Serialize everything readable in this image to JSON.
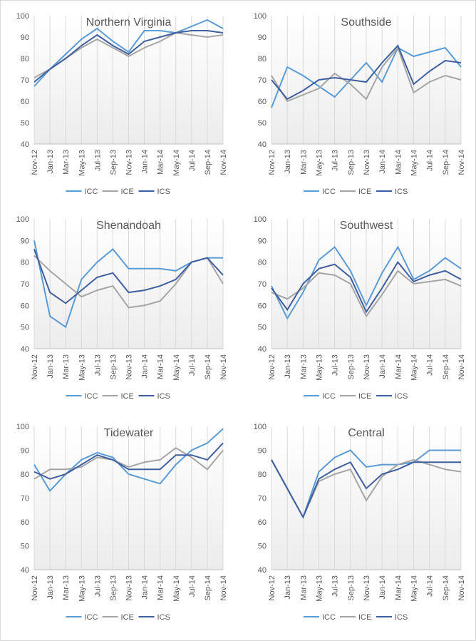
{
  "chart_data": [
    {
      "type": "line",
      "title": "Northern Virginia",
      "categories": [
        "Nov-12",
        "Jan-13",
        "Mar-13",
        "May-13",
        "Jul-13",
        "Sep-13",
        "Nov-13",
        "Jan-14",
        "Mar-14",
        "May-14",
        "Jul-14",
        "Sep-14",
        "Nov-14"
      ],
      "ylim": [
        40,
        100
      ],
      "yticks": [
        40,
        50,
        60,
        70,
        80,
        90,
        100
      ],
      "legend": "bottom",
      "series": [
        {
          "name": "ICC",
          "color": "#5b9bd5",
          "values": [
            67,
            75,
            82,
            89,
            94,
            88,
            83,
            93,
            93,
            92,
            95,
            98,
            94
          ]
        },
        {
          "name": "ICE",
          "color": "#a5a5a5",
          "values": [
            71,
            75,
            80,
            85,
            89,
            85,
            81,
            85,
            88,
            92,
            91,
            90,
            91
          ]
        },
        {
          "name": "ICS",
          "color": "#3f5f9e",
          "values": [
            69,
            75,
            80,
            86,
            91,
            86,
            82,
            88,
            90,
            92,
            93,
            93,
            92
          ]
        }
      ]
    },
    {
      "type": "line",
      "title": "Southside",
      "categories": [
        "Nov-12",
        "Jan-13",
        "Mar-13",
        "May-13",
        "Jul-13",
        "Sep-13",
        "Nov-13",
        "Jan-14",
        "Mar-14",
        "May-14",
        "Jul-14",
        "Sep-14",
        "Nov-14"
      ],
      "ylim": [
        40,
        100
      ],
      "yticks": [
        40,
        50,
        60,
        70,
        80,
        90,
        100
      ],
      "legend": "bottom",
      "series": [
        {
          "name": "ICC",
          "color": "#5b9bd5",
          "values": [
            57,
            76,
            72,
            67,
            62,
            70,
            78,
            69,
            85,
            81,
            83,
            85,
            76
          ]
        },
        {
          "name": "ICE",
          "color": "#a5a5a5",
          "values": [
            72,
            60,
            63,
            66,
            73,
            68,
            61,
            76,
            85,
            64,
            69,
            72,
            70
          ]
        },
        {
          "name": "ICS",
          "color": "#3f5f9e",
          "values": [
            70,
            61,
            65,
            70,
            71,
            70,
            69,
            78,
            86,
            68,
            74,
            79,
            78
          ]
        }
      ]
    },
    {
      "type": "line",
      "title": "Shenandoah",
      "categories": [
        "Nov-12",
        "Jan-13",
        "Mar-13",
        "May-13",
        "Jul-13",
        "Sep-13",
        "Nov-13",
        "Jan-14",
        "Mar-14",
        "May-14",
        "Jul-14",
        "Sep-14",
        "Nov-14"
      ],
      "ylim": [
        40,
        100
      ],
      "yticks": [
        40,
        50,
        60,
        70,
        80,
        90,
        100
      ],
      "legend": "bottom",
      "series": [
        {
          "name": "ICC",
          "color": "#5b9bd5",
          "values": [
            90,
            55,
            50,
            72,
            80,
            86,
            77,
            77,
            77,
            76,
            80,
            82,
            82
          ]
        },
        {
          "name": "ICE",
          "color": "#a5a5a5",
          "values": [
            83,
            76,
            70,
            64,
            67,
            69,
            59,
            60,
            62,
            70,
            80,
            82,
            70
          ]
        },
        {
          "name": "ICS",
          "color": "#3f5f9e",
          "values": [
            86,
            66,
            61,
            67,
            73,
            75,
            66,
            67,
            69,
            72,
            80,
            82,
            74
          ]
        }
      ]
    },
    {
      "type": "line",
      "title": "Southwest",
      "categories": [
        "Nov-12",
        "Jan-13",
        "Mar-13",
        "May-13",
        "Jul-13",
        "Sep-13",
        "Nov-13",
        "Jan-14",
        "Mar-14",
        "May-14",
        "Jul-14",
        "Sep-14",
        "Nov-14"
      ],
      "ylim": [
        40,
        100
      ],
      "yticks": [
        40,
        50,
        60,
        70,
        80,
        90,
        100
      ],
      "legend": "bottom",
      "series": [
        {
          "name": "ICC",
          "color": "#5b9bd5",
          "values": [
            69,
            54,
            66,
            81,
            87,
            76,
            60,
            75,
            87,
            72,
            76,
            82,
            77
          ]
        },
        {
          "name": "ICE",
          "color": "#a5a5a5",
          "values": [
            66,
            63,
            68,
            75,
            74,
            70,
            55,
            65,
            76,
            70,
            71,
            72,
            69
          ]
        },
        {
          "name": "ICS",
          "color": "#3f5f9e",
          "values": [
            68,
            58,
            70,
            77,
            79,
            73,
            57,
            68,
            80,
            71,
            74,
            76,
            72
          ]
        }
      ]
    },
    {
      "type": "line",
      "title": "Tidewater",
      "categories": [
        "Nov-12",
        "Jan-13",
        "Mar-13",
        "May-13",
        "Jul-13",
        "Sep-13",
        "Nov-13",
        "Jan-14",
        "Mar-14",
        "May-14",
        "Jul-14",
        "Sep-14",
        "Nov-14"
      ],
      "ylim": [
        40,
        100
      ],
      "yticks": [
        40,
        50,
        60,
        70,
        80,
        90,
        100
      ],
      "legend": "bottom",
      "series": [
        {
          "name": "ICC",
          "color": "#5b9bd5",
          "values": [
            84,
            73,
            80,
            86,
            89,
            87,
            80,
            78,
            76,
            84,
            90,
            93,
            99
          ]
        },
        {
          "name": "ICE",
          "color": "#a5a5a5",
          "values": [
            78,
            82,
            82,
            83,
            87,
            86,
            83,
            85,
            86,
            91,
            87,
            82,
            90
          ]
        },
        {
          "name": "ICS",
          "color": "#3f5f9e",
          "values": [
            81,
            78,
            80,
            84,
            88,
            86,
            82,
            82,
            82,
            88,
            88,
            86,
            93
          ]
        }
      ]
    },
    {
      "type": "line",
      "title": "Central",
      "categories": [
        "Nov-12",
        "Jan-13",
        "Mar-13",
        "May-13",
        "Jul-13",
        "Sep-13",
        "Nov-13",
        "Jan-14",
        "Mar-14",
        "May-14",
        "Jul-14",
        "Sep-14",
        "Nov-14"
      ],
      "ylim": [
        40,
        100
      ],
      "yticks": [
        40,
        50,
        60,
        70,
        80,
        90,
        100
      ],
      "legend": "bottom",
      "series": [
        {
          "name": "ICC",
          "color": "#5b9bd5",
          "values": [
            86,
            74,
            62,
            81,
            87,
            90,
            83,
            84,
            84,
            85,
            90,
            90,
            90
          ]
        },
        {
          "name": "ICE",
          "color": "#a5a5a5",
          "values": [
            86,
            74,
            62,
            77,
            80,
            82,
            69,
            79,
            84,
            86,
            84,
            82,
            81
          ]
        },
        {
          "name": "ICS",
          "color": "#3f5f9e",
          "values": [
            86,
            74,
            62,
            78,
            82,
            85,
            74,
            80,
            82,
            85,
            85,
            85,
            85
          ]
        }
      ]
    }
  ]
}
